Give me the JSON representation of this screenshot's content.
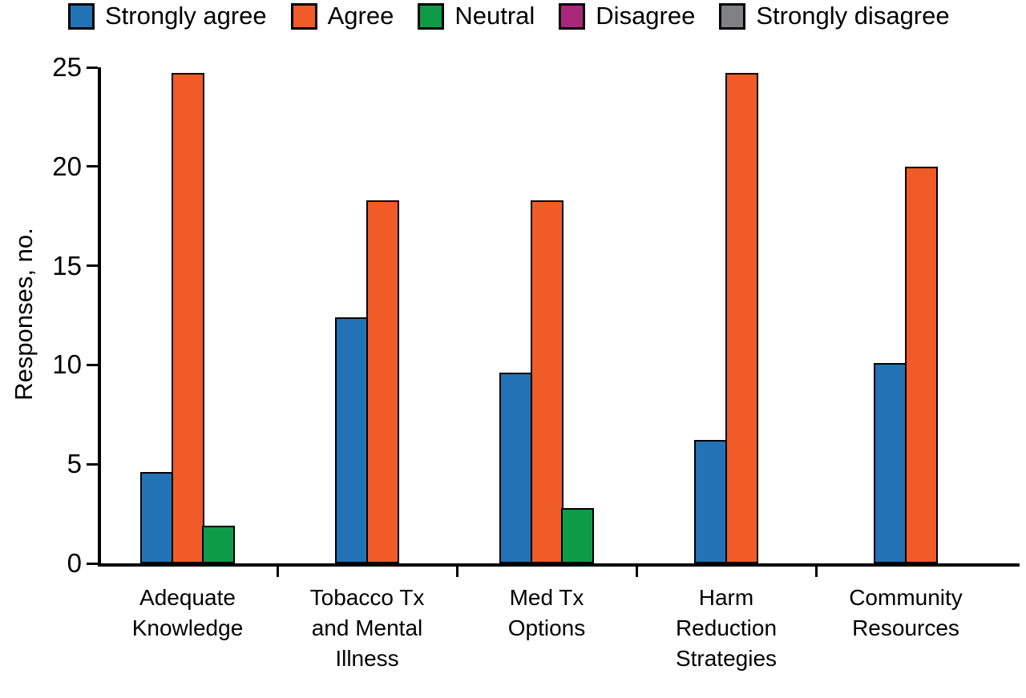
{
  "chart_data": {
    "type": "bar",
    "title": "",
    "xlabel": "",
    "ylabel": "Responses, no.",
    "ylim": [
      0,
      25
    ],
    "yticks": [
      0,
      5,
      10,
      15,
      20,
      25
    ],
    "grid": false,
    "legend_position": "top",
    "categories": [
      [
        "Adequate",
        "Knowledge"
      ],
      [
        "Tobacco Tx",
        "and Mental",
        "Illness"
      ],
      [
        "Med Tx",
        "Options"
      ],
      [
        "Harm",
        "Reduction",
        "Strategies"
      ],
      [
        "Community",
        "Resources"
      ]
    ],
    "series": [
      {
        "name": "Strongly agree",
        "color": "#2272b5",
        "values": [
          4.6,
          12.4,
          9.6,
          6.2,
          10.1
        ]
      },
      {
        "name": "Agree",
        "color": "#f15b27",
        "values": [
          24.7,
          18.3,
          18.3,
          24.7,
          20.0
        ]
      },
      {
        "name": "Neutral",
        "color": "#0e9b48",
        "values": [
          1.9,
          0,
          2.8,
          0,
          0
        ]
      },
      {
        "name": "Disagree",
        "color": "#a9267b",
        "values": [
          0,
          0,
          0,
          0,
          0
        ]
      },
      {
        "name": "Strongly disagree",
        "color": "#7f8183",
        "values": [
          0,
          0,
          0,
          0,
          0
        ]
      }
    ]
  }
}
